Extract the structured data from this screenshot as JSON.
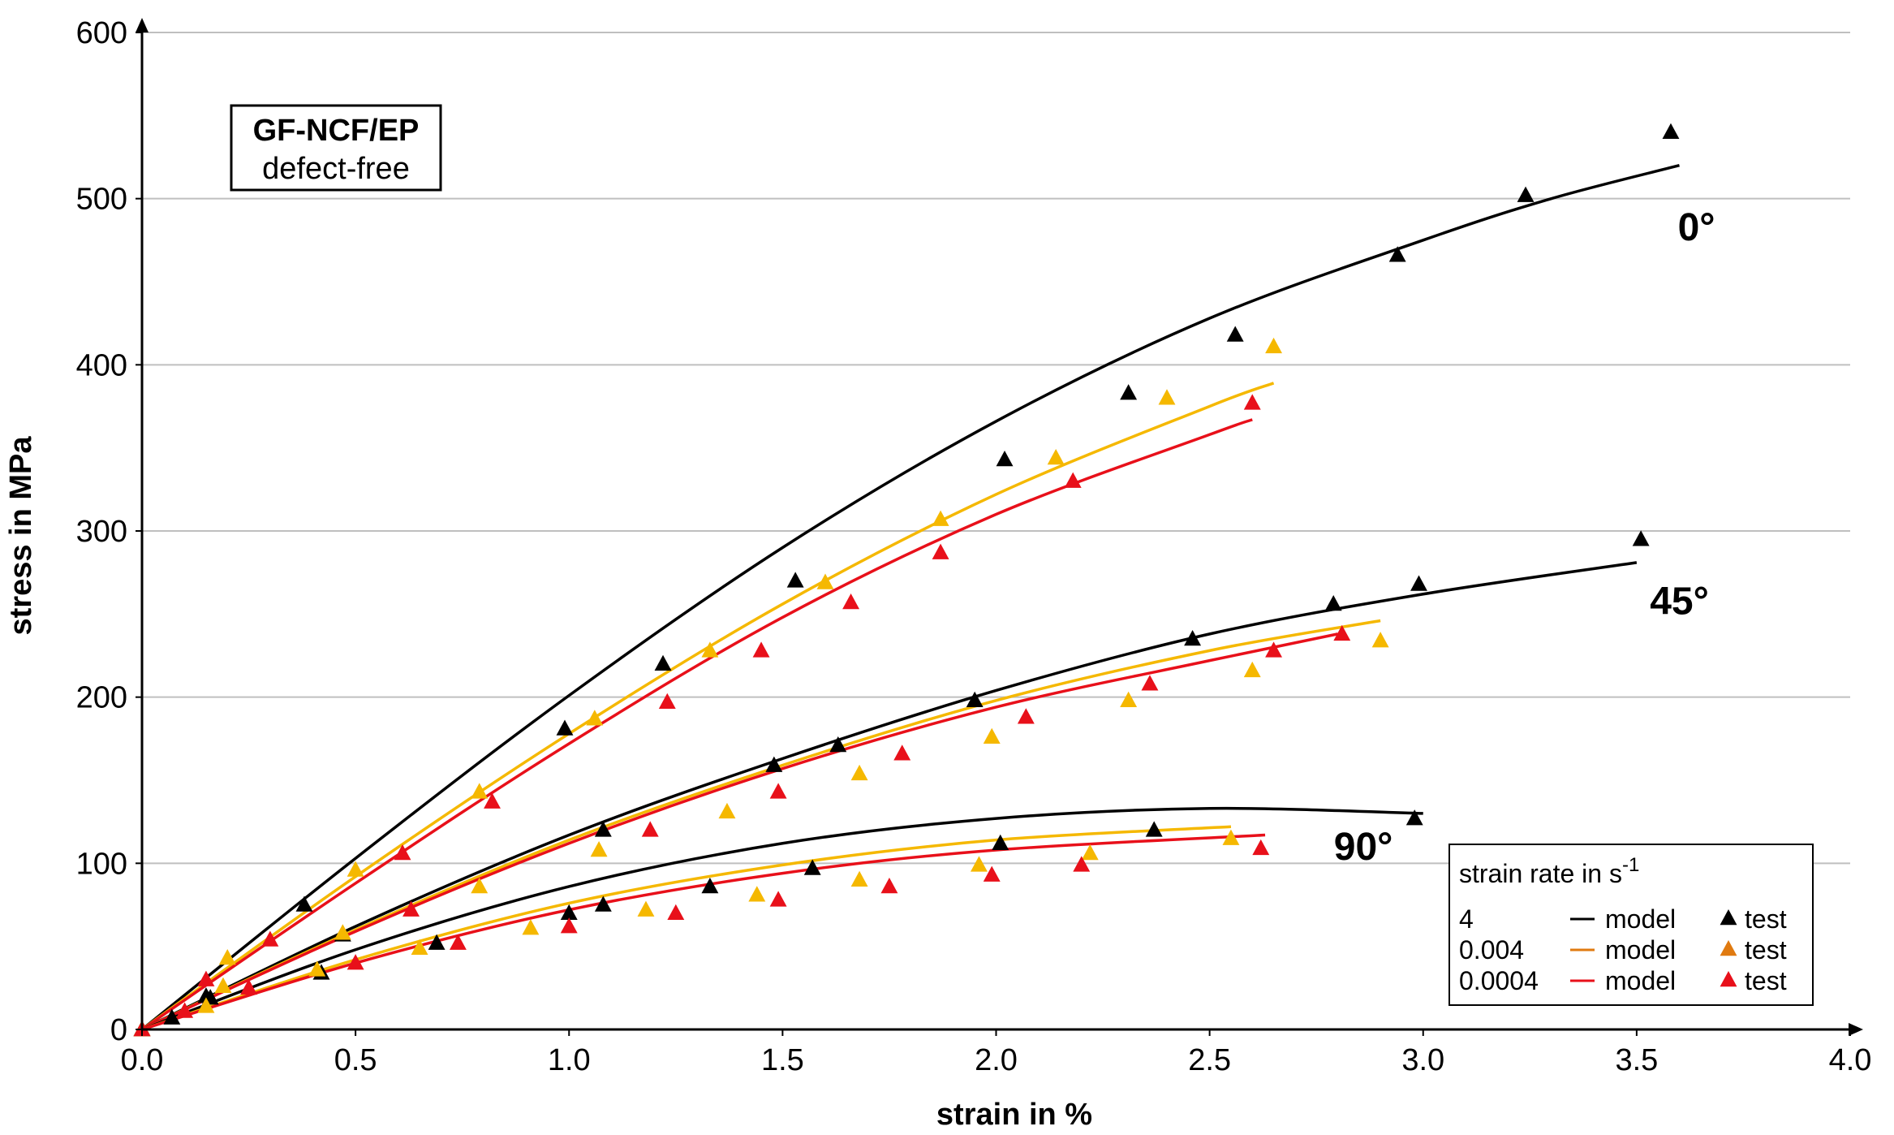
{
  "colors": {
    "r4": "#000000",
    "r0004": "#F5B800",
    "r00004": "#E8101A",
    "grid": "#BFBFBF"
  },
  "chart_data": {
    "type": "scatter",
    "title": "",
    "xlabel": "strain in %",
    "ylabel": "stress in MPa",
    "xlim": [
      0,
      4
    ],
    "ylim": [
      0,
      600
    ],
    "xticks": [
      "0.0",
      "0.5",
      "1.0",
      "1.5",
      "2.0",
      "2.5",
      "3.0",
      "3.5",
      "4.0"
    ],
    "yticks": [
      "0",
      "100",
      "200",
      "300",
      "400",
      "500",
      "600"
    ],
    "grid": "horizontal",
    "info_box": {
      "title": "GF-NCF/EP",
      "subtitle": "defect-free"
    },
    "group_labels": [
      {
        "text": "0°",
        "x": 3.64,
        "y": 475
      },
      {
        "text": "45°",
        "x": 3.6,
        "y": 250
      },
      {
        "text": "90°",
        "x": 2.86,
        "y": 102
      }
    ],
    "legend": {
      "title": "strain rate in s",
      "title_sup": "-1",
      "rows": [
        {
          "rate": "4",
          "model": "model",
          "test": "test",
          "color": "#000000"
        },
        {
          "rate": "0.004",
          "model": "model",
          "test": "test",
          "color": "#F5B800"
        },
        {
          "rate": "0.0004",
          "model": "model",
          "test": "test",
          "color": "#E8101A"
        }
      ]
    },
    "series": [
      {
        "name": "0° model 4 s-1",
        "kind": "model",
        "color": "#000000",
        "x": [
          0,
          0.5,
          1.0,
          1.5,
          2.0,
          2.5,
          3.0,
          3.3,
          3.6
        ],
        "y": [
          0,
          103,
          201,
          290,
          366,
          428,
          475,
          500,
          520
        ]
      },
      {
        "name": "0° model 0.004 s-1",
        "kind": "model",
        "color": "#F5B800",
        "x": [
          0,
          0.5,
          1.0,
          1.5,
          2.0,
          2.5,
          2.65
        ],
        "y": [
          0,
          92,
          178,
          256,
          322,
          375,
          389
        ]
      },
      {
        "name": "0° model 0.0004 s-1",
        "kind": "model",
        "color": "#E8101A",
        "x": [
          0,
          0.5,
          1.0,
          1.5,
          2.0,
          2.5,
          2.6
        ],
        "y": [
          0,
          88,
          172,
          248,
          310,
          358,
          367
        ]
      },
      {
        "name": "45° model 4 s-1",
        "kind": "model",
        "color": "#000000",
        "x": [
          0,
          0.5,
          1.0,
          1.5,
          2.0,
          2.5,
          3.0,
          3.5
        ],
        "y": [
          0,
          62,
          117,
          163,
          204,
          238,
          262,
          281
        ]
      },
      {
        "name": "45° model 0.004 s-1",
        "kind": "model",
        "color": "#F5B800",
        "x": [
          0,
          0.5,
          1.0,
          1.5,
          2.0,
          2.5,
          2.9
        ],
        "y": [
          0,
          60,
          114,
          159,
          198,
          228,
          246
        ]
      },
      {
        "name": "45° model 0.0004 s-1",
        "kind": "model",
        "color": "#E8101A",
        "x": [
          0,
          0.5,
          1.0,
          1.5,
          2.0,
          2.5,
          2.8
        ],
        "y": [
          0,
          59,
          112,
          157,
          194,
          222,
          238
        ]
      },
      {
        "name": "90° model 4 s-1",
        "kind": "model",
        "color": "#000000",
        "x": [
          0,
          0.5,
          1.0,
          1.5,
          2.0,
          2.5,
          3.0
        ],
        "y": [
          0,
          48,
          86,
          112,
          127,
          133,
          130
        ]
      },
      {
        "name": "90° model 0.004 s-1",
        "kind": "model",
        "color": "#F5B800",
        "x": [
          0,
          0.5,
          1.0,
          1.5,
          2.0,
          2.55
        ],
        "y": [
          0,
          42,
          76,
          99,
          114,
          122
        ]
      },
      {
        "name": "90° model 0.0004 s-1",
        "kind": "model",
        "color": "#E8101A",
        "x": [
          0,
          0.5,
          1.0,
          1.5,
          2.0,
          2.63
        ],
        "y": [
          0,
          40,
          72,
          94,
          108,
          117
        ]
      },
      {
        "name": "0° test 4 s-1",
        "kind": "test",
        "color": "#000000",
        "x": [
          0.0,
          0.38,
          0.99,
          1.22,
          1.53,
          2.02,
          2.31,
          2.56,
          2.94,
          3.24,
          3.58
        ],
        "y": [
          0,
          75,
          181,
          220,
          270,
          343,
          383,
          418,
          466,
          502,
          540
        ]
      },
      {
        "name": "0° test 0.004 s-1",
        "kind": "test",
        "color": "#F5B800",
        "x": [
          0.0,
          0.2,
          0.5,
          0.79,
          1.06,
          1.33,
          1.6,
          1.87,
          2.14,
          2.4,
          2.65
        ],
        "y": [
          0,
          43,
          96,
          143,
          187,
          228,
          269,
          307,
          344,
          380,
          411
        ]
      },
      {
        "name": "0° test 0.0004 s-1",
        "kind": "test",
        "color": "#E8101A",
        "x": [
          0.0,
          0.15,
          0.3,
          0.61,
          0.82,
          1.23,
          1.45,
          1.66,
          1.87,
          2.18,
          2.6
        ],
        "y": [
          0,
          30,
          54,
          106,
          137,
          197,
          228,
          257,
          287,
          330,
          377
        ]
      },
      {
        "name": "45° test 4 s-1",
        "kind": "test",
        "color": "#000000",
        "x": [
          0.0,
          0.16,
          0.47,
          1.08,
          1.48,
          1.63,
          1.95,
          2.46,
          2.79,
          2.99,
          3.51
        ],
        "y": [
          0,
          19,
          57,
          120,
          159,
          171,
          198,
          235,
          256,
          268,
          295
        ]
      },
      {
        "name": "45° test 0.004 s-1",
        "kind": "test",
        "color": "#F5B800",
        "x": [
          0.0,
          0.19,
          0.47,
          0.79,
          1.07,
          1.37,
          1.68,
          1.99,
          2.31,
          2.6,
          2.9
        ],
        "y": [
          0,
          26,
          58,
          86,
          108,
          131,
          154,
          176,
          198,
          216,
          234
        ]
      },
      {
        "name": "45° test 0.0004 s-1",
        "kind": "test",
        "color": "#E8101A",
        "x": [
          0.0,
          0.25,
          0.63,
          1.19,
          1.49,
          1.78,
          2.07,
          2.36,
          2.65,
          2.81
        ],
        "y": [
          0,
          25,
          72,
          120,
          143,
          166,
          188,
          208,
          228,
          238
        ]
      },
      {
        "name": "90° test 4 s-1",
        "kind": "test",
        "color": "#000000",
        "x": [
          0.0,
          0.07,
          0.15,
          0.42,
          0.69,
          1.0,
          1.08,
          1.33,
          1.57,
          2.01,
          2.37,
          2.98
        ],
        "y": [
          0,
          7,
          20,
          34,
          52,
          70,
          75,
          86,
          97,
          112,
          120,
          127
        ]
      },
      {
        "name": "90° test 0.004 s-1",
        "kind": "test",
        "color": "#F5B800",
        "x": [
          0.0,
          0.15,
          0.41,
          0.65,
          0.91,
          1.18,
          1.44,
          1.68,
          1.96,
          2.22,
          2.55
        ],
        "y": [
          0,
          14,
          36,
          49,
          61,
          72,
          81,
          90,
          99,
          106,
          115
        ]
      },
      {
        "name": "90° test 0.0004 s-1",
        "kind": "test",
        "color": "#E8101A",
        "x": [
          0.0,
          0.1,
          0.5,
          0.74,
          1.0,
          1.25,
          1.49,
          1.75,
          1.99,
          2.2,
          2.62
        ],
        "y": [
          0,
          11,
          40,
          52,
          62,
          70,
          78,
          86,
          93,
          99,
          109
        ]
      }
    ]
  }
}
